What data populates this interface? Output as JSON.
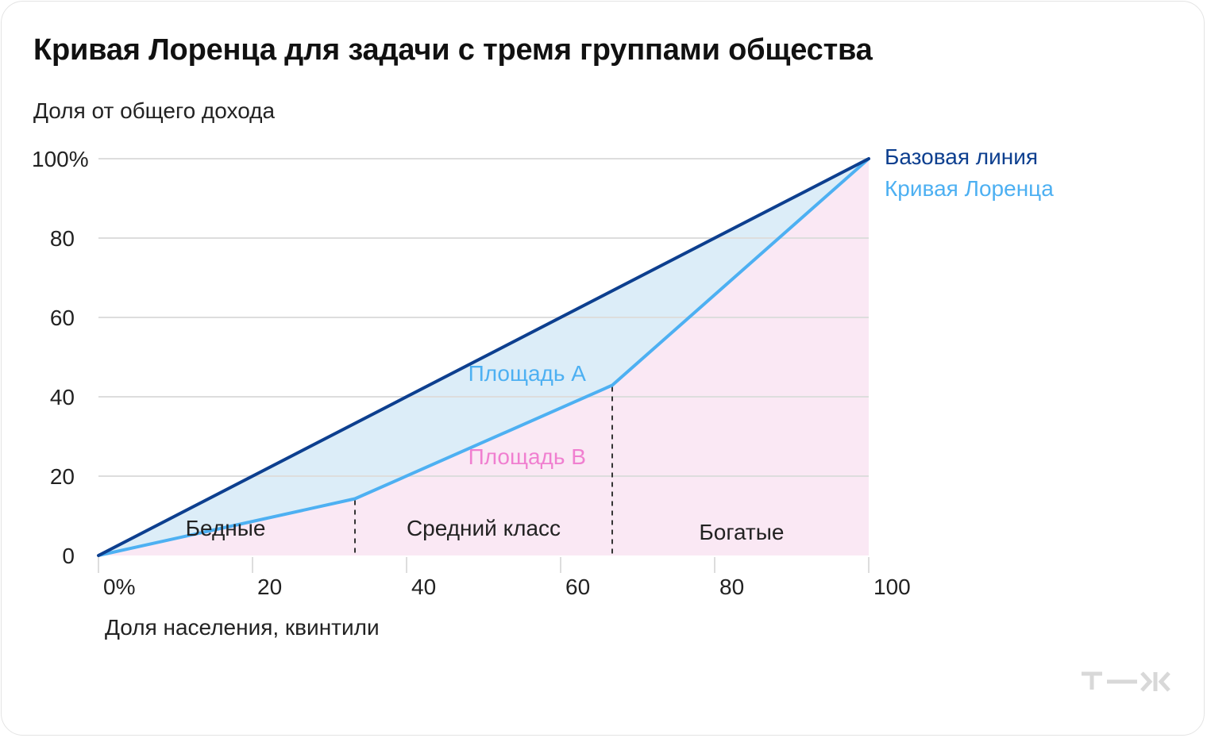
{
  "title": "Кривая Лоренца для задачи с тремя группами общества",
  "colors": {
    "baseline": "#0d3f8f",
    "lorenz": "#4db0f2",
    "area_a_fill": "#dcedf8",
    "area_b_fill": "#fae8f4",
    "area_b_text": "#f07fd0",
    "grid": "#dddddd",
    "text": "#222222",
    "logo": "#d8d8d8"
  },
  "logo": {
    "icon": "tzh-logo"
  },
  "chart_data": {
    "type": "line",
    "title": "Кривая Лоренца для задачи с тремя группами общества",
    "ylabel": "Доля от общего дохода",
    "xlabel": "Доля населения, квинтили",
    "xlim": [
      0,
      100
    ],
    "ylim": [
      0,
      100
    ],
    "x_ticks": [
      0,
      20,
      40,
      60,
      80,
      100
    ],
    "x_tick_labels": [
      "0%",
      "20",
      "40",
      "60",
      "80",
      "100"
    ],
    "y_ticks": [
      0,
      20,
      40,
      60,
      80,
      100
    ],
    "y_tick_labels": [
      "0",
      "20",
      "40",
      "60",
      "80",
      "100%"
    ],
    "grid": "horizontal",
    "series": [
      {
        "name": "Базовая линия",
        "x": [
          0,
          100
        ],
        "y": [
          0,
          100
        ]
      },
      {
        "name": "Кривая Лоренца",
        "x": [
          0,
          33.3,
          66.7,
          100
        ],
        "y": [
          0,
          14.3,
          42.9,
          100
        ]
      }
    ],
    "legend_position": "right of line ends",
    "areas": [
      {
        "label": "Площадь А",
        "between": "Базовая линия and Кривая Лоренца",
        "label_at": [
          48,
          44
        ]
      },
      {
        "label": "Площадь B",
        "between": "Кривая Лоренца and x-axis",
        "label_at": [
          48,
          23
        ]
      }
    ],
    "group_dividers": [
      33.3,
      66.7
    ],
    "groups": [
      {
        "label": "Бедные",
        "x": 16.5,
        "y": 5
      },
      {
        "label": "Средний класс",
        "x": 50,
        "y": 5
      },
      {
        "label": "Богатые",
        "x": 83.5,
        "y": 4
      }
    ]
  }
}
